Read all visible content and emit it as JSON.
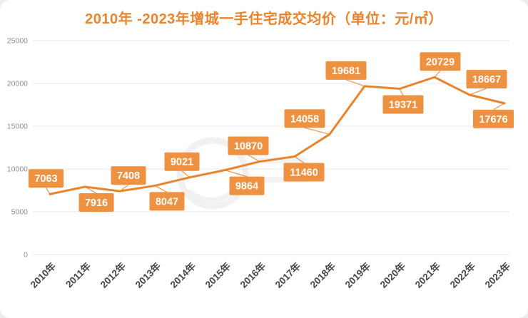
{
  "page": {
    "background": "#ededed",
    "card_background": "#ffffff"
  },
  "chart_data": {
    "type": "line",
    "title": "2010年 -2023年增城一手住宅成交均价（单位：元/㎡）",
    "categories": [
      "2010年",
      "2011年",
      "2012年",
      "2013年",
      "2014年",
      "2015年",
      "2016年",
      "2017年",
      "2018年",
      "2019年",
      "2020年",
      "2021年",
      "2022年",
      "2023年"
    ],
    "values": [
      7063,
      7916,
      7408,
      8047,
      9021,
      9864,
      10870,
      11460,
      14058,
      19681,
      19371,
      20729,
      18667,
      17676
    ],
    "xlabel": "",
    "ylabel": "",
    "ylim": [
      0,
      25000
    ],
    "yticks": [
      0,
      5000,
      10000,
      15000,
      20000,
      25000
    ],
    "grid": true,
    "legend": false,
    "title_color": "#E8842E",
    "line_color": "#E8842E",
    "label_box_color": "#EE9140",
    "label_text_color": "#FFFFFF",
    "tick_color": "#8F8F8F",
    "x_tick_color": "#474747",
    "grid_color": "#E7E7E7",
    "label_positions": [
      "above",
      "below",
      "above",
      "below",
      "above",
      "below",
      "above",
      "below",
      "above",
      "above",
      "below",
      "above",
      "above",
      "below"
    ],
    "label_dx": [
      -8,
      16,
      12,
      17,
      -11,
      31,
      -16,
      13,
      -35,
      -26,
      5,
      8,
      24,
      -7
    ]
  }
}
